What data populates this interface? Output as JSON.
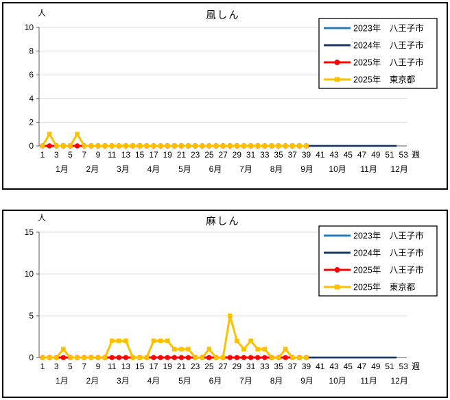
{
  "page": {
    "background": "#FFFFFF",
    "text_color": "#000000",
    "gridline_color": "#D9D9D9",
    "axis_color": "#595959"
  },
  "chart_data": [
    {
      "type": "line",
      "title": "風しん",
      "y_axis_unit": "人",
      "x_axis_unit": "週",
      "ylim": [
        0,
        10
      ],
      "yticks": [
        0,
        2,
        4,
        6,
        8,
        10
      ],
      "xticks": [
        1,
        3,
        5,
        7,
        9,
        11,
        13,
        15,
        17,
        19,
        21,
        23,
        25,
        27,
        29,
        31,
        33,
        35,
        37,
        39,
        41,
        43,
        45,
        47,
        49,
        51,
        53
      ],
      "month_labels": [
        "1月",
        "2月",
        "3月",
        "4月",
        "5月",
        "6月",
        "7月",
        "8月",
        "9月",
        "10月",
        "11月",
        "12月"
      ],
      "grid": true,
      "legend_position": "top-right-inside",
      "legend": [
        {
          "label": "2023年　八王子市",
          "color": "#2779BE",
          "marker": "none"
        },
        {
          "label": "2024年　八王子市",
          "color": "#17375E",
          "marker": "none"
        },
        {
          "label": "2025年　八王子市",
          "color": "#FF0000",
          "marker": "circle"
        },
        {
          "label": "2025年　東京都",
          "color": "#FFC000",
          "marker": "square"
        }
      ],
      "series": [
        {
          "name": "2023年 八王子市",
          "color": "#2779BE",
          "marker": "none",
          "line_width": 2.5,
          "week_start": 1,
          "week_end": 52,
          "values_constant": 0
        },
        {
          "name": "2024年 八王子市",
          "color": "#17375E",
          "marker": "none",
          "line_width": 2.5,
          "week_start": 1,
          "week_end": 52,
          "values_constant": 0
        },
        {
          "name": "2025年 八王子市",
          "color": "#FF0000",
          "marker": "circle",
          "line_width": 3,
          "week_start": 1,
          "week_end": 39,
          "values_constant": 0
        },
        {
          "name": "2025年 東京都",
          "color": "#FFC000",
          "marker": "square",
          "line_width": 3,
          "week_start": 1,
          "values": [
            0,
            1,
            0,
            0,
            0,
            1,
            0,
            0,
            0,
            0,
            0,
            0,
            0,
            0,
            0,
            0,
            0,
            0,
            0,
            0,
            0,
            0,
            0,
            0,
            0,
            0,
            0,
            0,
            0,
            0,
            0,
            0,
            0,
            0,
            0,
            0,
            0,
            0,
            0
          ]
        }
      ]
    },
    {
      "type": "line",
      "title": "麻しん",
      "y_axis_unit": "人",
      "x_axis_unit": "週",
      "ylim": [
        0,
        15
      ],
      "yticks": [
        0,
        5,
        10,
        15
      ],
      "xticks": [
        1,
        3,
        5,
        7,
        9,
        11,
        13,
        15,
        17,
        19,
        21,
        23,
        25,
        27,
        29,
        31,
        33,
        35,
        37,
        39,
        41,
        43,
        45,
        47,
        49,
        51,
        53
      ],
      "month_labels": [
        "1月",
        "2月",
        "3月",
        "4月",
        "5月",
        "6月",
        "7月",
        "8月",
        "9月",
        "10月",
        "11月",
        "12月"
      ],
      "grid": true,
      "legend_position": "top-right-inside",
      "legend": [
        {
          "label": "2023年　八王子市",
          "color": "#2779BE",
          "marker": "none"
        },
        {
          "label": "2024年　八王子市",
          "color": "#17375E",
          "marker": "none"
        },
        {
          "label": "2025年　八王子市",
          "color": "#FF0000",
          "marker": "circle"
        },
        {
          "label": "2025年　東京都",
          "color": "#FFC000",
          "marker": "square"
        }
      ],
      "series": [
        {
          "name": "2023年 八王子市",
          "color": "#2779BE",
          "marker": "none",
          "line_width": 2.5,
          "week_start": 1,
          "week_end": 52,
          "values_constant": 0
        },
        {
          "name": "2024年 八王子市",
          "color": "#17375E",
          "marker": "none",
          "line_width": 2.5,
          "week_start": 1,
          "week_end": 52,
          "values_constant": 0
        },
        {
          "name": "2025年 八王子市",
          "color": "#FF0000",
          "marker": "circle",
          "line_width": 3,
          "week_start": 1,
          "week_end": 39,
          "values_constant": 0
        },
        {
          "name": "2025年 東京都",
          "color": "#FFC000",
          "marker": "square",
          "line_width": 3,
          "week_start": 1,
          "values": [
            0,
            0,
            0,
            1,
            0,
            0,
            0,
            0,
            0,
            0,
            2,
            2,
            2,
            0,
            0,
            0,
            2,
            2,
            2,
            1,
            1,
            1,
            0,
            0,
            1,
            0,
            0,
            5,
            2,
            1,
            2,
            1,
            1,
            0,
            0,
            1,
            0,
            0,
            0
          ]
        }
      ]
    }
  ]
}
